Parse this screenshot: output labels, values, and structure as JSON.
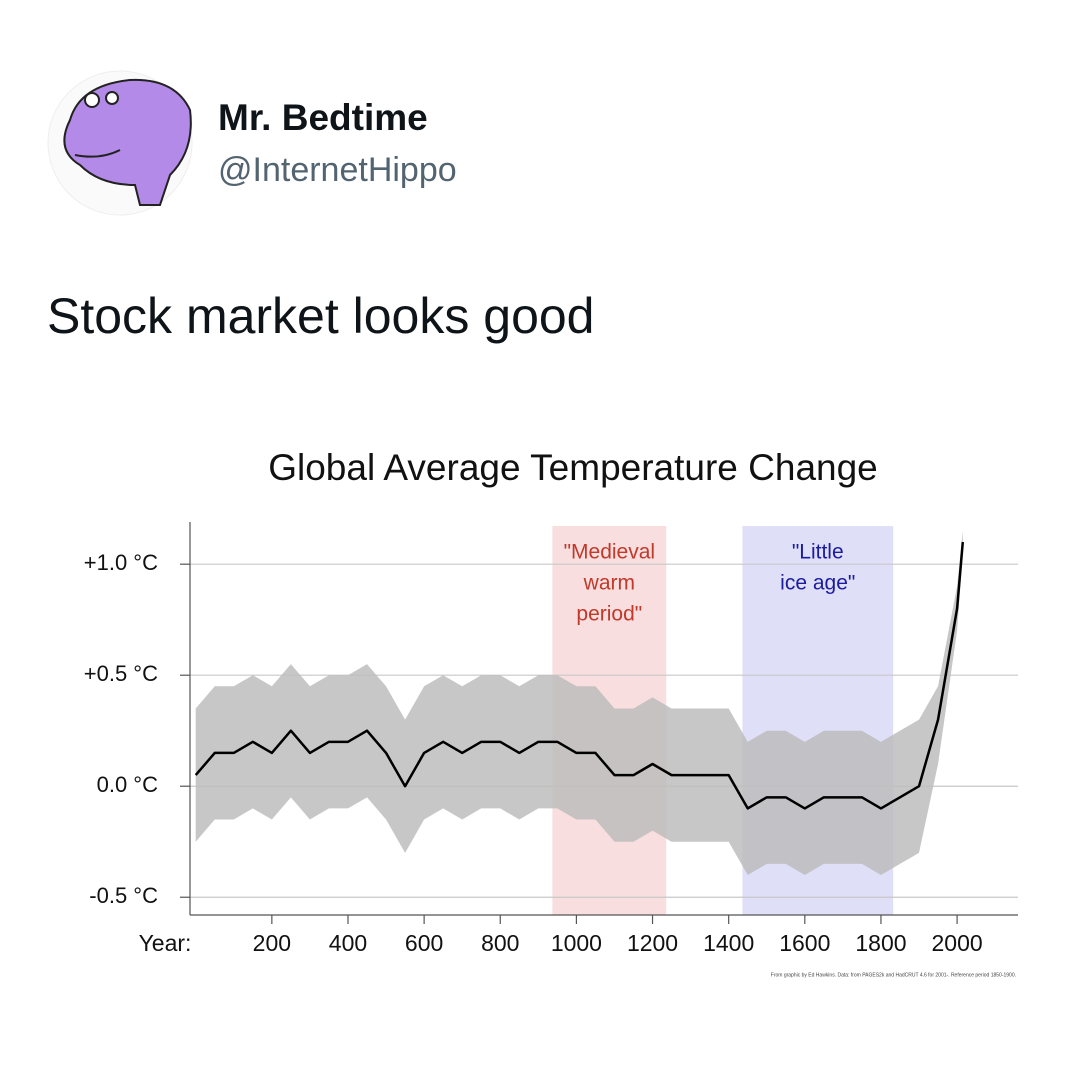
{
  "tweet": {
    "name": "Mr. Bedtime",
    "handle": "@InternetHippo",
    "text": "Stock market looks good"
  },
  "chart_data": {
    "type": "line",
    "title": "Global Average Temperature Change",
    "x_label": "Year:",
    "credit": "From graphic by Ed Hawkins. Data: from PAGES2k and HadCRUT 4.6 for 2001-. Reference period 1850-1900.",
    "x": [
      0,
      50,
      100,
      150,
      200,
      250,
      300,
      350,
      400,
      450,
      500,
      550,
      600,
      650,
      700,
      750,
      800,
      850,
      900,
      950,
      1000,
      1050,
      1100,
      1150,
      1200,
      1250,
      1300,
      1350,
      1400,
      1450,
      1500,
      1550,
      1600,
      1650,
      1700,
      1750,
      1800,
      1850,
      1900,
      1950,
      2000,
      2015
    ],
    "series": [
      {
        "color": "#000000",
        "values": [
          0.05,
          0.15,
          0.15,
          0.2,
          0.15,
          0.25,
          0.15,
          0.2,
          0.2,
          0.25,
          0.15,
          0.0,
          0.15,
          0.2,
          0.15,
          0.2,
          0.2,
          0.15,
          0.2,
          0.2,
          0.15,
          0.15,
          0.05,
          0.05,
          0.1,
          0.05,
          0.05,
          0.05,
          0.05,
          -0.1,
          -0.05,
          -0.05,
          -0.1,
          -0.05,
          -0.05,
          -0.05,
          -0.1,
          -0.05,
          0.0,
          0.3,
          0.8,
          1.1
        ]
      }
    ],
    "band_color": "#bdbdbd",
    "band_upper": [
      0.35,
      0.45,
      0.45,
      0.5,
      0.45,
      0.55,
      0.45,
      0.5,
      0.5,
      0.55,
      0.45,
      0.3,
      0.45,
      0.5,
      0.45,
      0.5,
      0.5,
      0.45,
      0.5,
      0.5,
      0.45,
      0.45,
      0.35,
      0.35,
      0.4,
      0.35,
      0.35,
      0.35,
      0.35,
      0.2,
      0.25,
      0.25,
      0.2,
      0.25,
      0.25,
      0.25,
      0.2,
      0.25,
      0.3,
      0.45,
      0.9,
      1.15
    ],
    "band_lower": [
      -0.25,
      -0.15,
      -0.15,
      -0.1,
      -0.15,
      -0.05,
      -0.15,
      -0.1,
      -0.1,
      -0.05,
      -0.15,
      -0.3,
      -0.15,
      -0.1,
      -0.15,
      -0.1,
      -0.1,
      -0.15,
      -0.1,
      -0.1,
      -0.15,
      -0.15,
      -0.25,
      -0.25,
      -0.2,
      -0.25,
      -0.25,
      -0.25,
      -0.25,
      -0.4,
      -0.35,
      -0.35,
      -0.4,
      -0.35,
      -0.35,
      -0.35,
      -0.4,
      -0.35,
      -0.3,
      0.1,
      0.7,
      1.05
    ],
    "spans": [
      {
        "start": 937,
        "end": 1236,
        "color": "#f8dede",
        "text_color": "#c0392b",
        "text": [
          "\"Medieval",
          "warm",
          "period\""
        ]
      },
      {
        "start": 1436,
        "end": 1832,
        "color": "#dfdff8",
        "text_color": "#1c1ca0",
        "text": [
          "\"Little",
          "ice age\""
        ]
      }
    ],
    "xlim": [
      -15,
      2160
    ],
    "ylim": [
      -0.58,
      1.19
    ],
    "xticks": [
      200,
      400,
      600,
      800,
      1000,
      1200,
      1400,
      1600,
      1800,
      2000
    ],
    "yticks": [
      {
        "value": -0.5,
        "label": "-0.5 °C"
      },
      {
        "value": 0.0,
        "label": "0.0 °C"
      },
      {
        "value": 0.5,
        "label": "+0.5 °C"
      },
      {
        "value": 1.0,
        "label": "+1.0 °C"
      }
    ],
    "grid": true
  }
}
